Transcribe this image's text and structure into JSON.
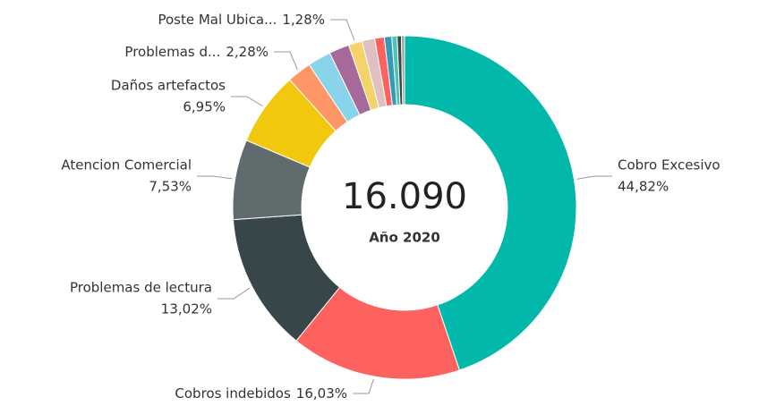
{
  "chart_data": {
    "type": "donut",
    "center_text": "16.090",
    "center_label": "Año 2020",
    "categories": [
      "Cobro Excesivo",
      "Cobros indebidos",
      "Problemas de lectura",
      "Atencion Comercial",
      "Daños artefactos",
      "Problemas d...",
      null,
      null,
      "Poste Mal Ubica...",
      null,
      null,
      null,
      null,
      null,
      null
    ],
    "values": [
      44.82,
      16.03,
      13.02,
      7.53,
      6.95,
      2.28,
      2.2,
      1.9,
      1.28,
      1.2,
      0.9,
      0.7,
      0.5,
      0.4,
      0.29
    ],
    "value_labels": [
      "44,82%",
      "16,03%",
      "13,02%",
      "7,53%",
      "6,95%",
      "2,28%",
      null,
      null,
      "1,28%",
      null,
      null,
      null,
      null,
      null,
      null
    ],
    "colors": [
      "#01b8aa",
      "#fd625e",
      "#374649",
      "#5f6b6d",
      "#f2c80f",
      "#fe9666",
      "#8ad4eb",
      "#a66999",
      "#f5d36b",
      "#dfbfbf",
      "#fd625e",
      "#3599b8",
      "#4ac5bb",
      "#374649",
      "#a0a0a0"
    ]
  }
}
